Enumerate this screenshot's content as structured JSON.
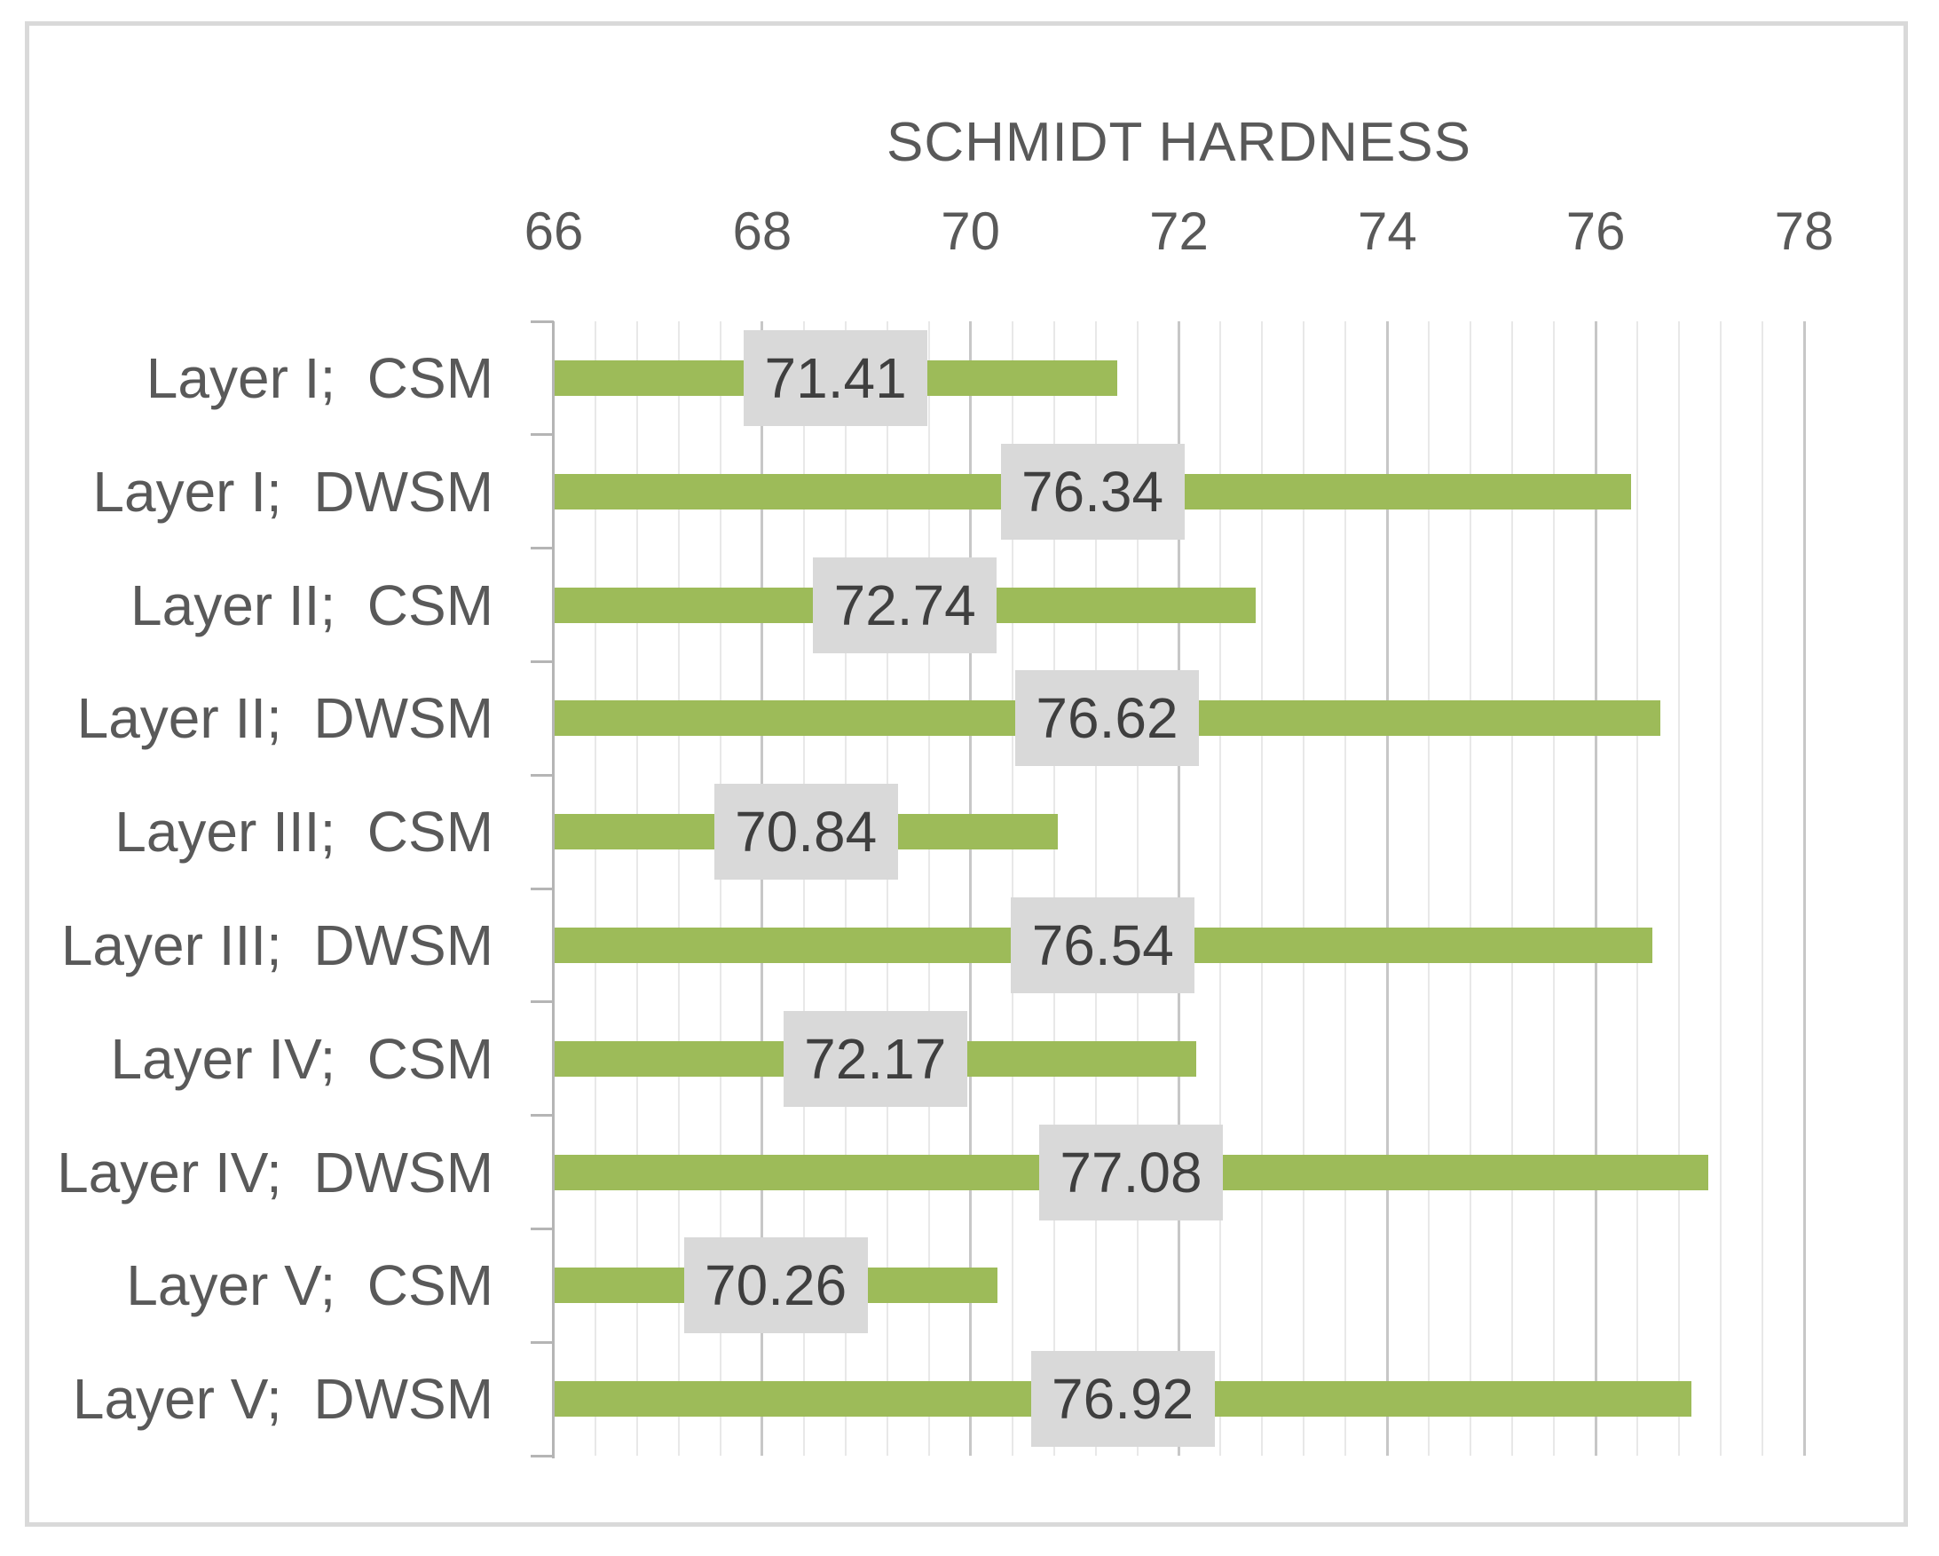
{
  "chart_data": {
    "type": "bar",
    "orientation": "horizontal",
    "title": "SCHMIDT HARDNESS",
    "categories": [
      "Layer I;  CSM",
      "Layer I;  DWSM",
      "Layer II;  CSM",
      "Layer II;  DWSM",
      "Layer III;  CSM",
      "Layer III;  DWSM",
      "Layer IV;  CSM",
      "Layer IV;  DWSM",
      "Layer V;  CSM",
      "Layer V;  DWSM"
    ],
    "values": [
      71.41,
      76.34,
      72.74,
      76.62,
      70.84,
      76.54,
      72.17,
      77.08,
      70.26,
      76.92
    ],
    "value_labels": [
      "71.41",
      "76.34",
      "72.74",
      "76.62",
      "70.84",
      "76.54",
      "72.17",
      "77.08",
      "70.26",
      "76.92"
    ],
    "xlabel": "",
    "ylabel": "",
    "xlim": [
      66,
      78
    ],
    "x_ticks": [
      66,
      68,
      70,
      72,
      74,
      76,
      78
    ],
    "x_tick_labels": [
      "66",
      "68",
      "70",
      "72",
      "74",
      "76",
      "78"
    ],
    "major_unit": 2,
    "minor_unit": 0.4,
    "grid": true,
    "legend": false,
    "bars_start_at": 66,
    "colors": {
      "bar": "#9dbb59",
      "data_label_background": "#d9d9d9",
      "data_label_text": "#3f3f3f",
      "axis_text": "#595959",
      "major_gridline": "#c7c7c7",
      "minor_gridline": "#e8e8e8",
      "axis_line": "#b5b5b5",
      "frame_border": "#d9d9d9"
    }
  }
}
